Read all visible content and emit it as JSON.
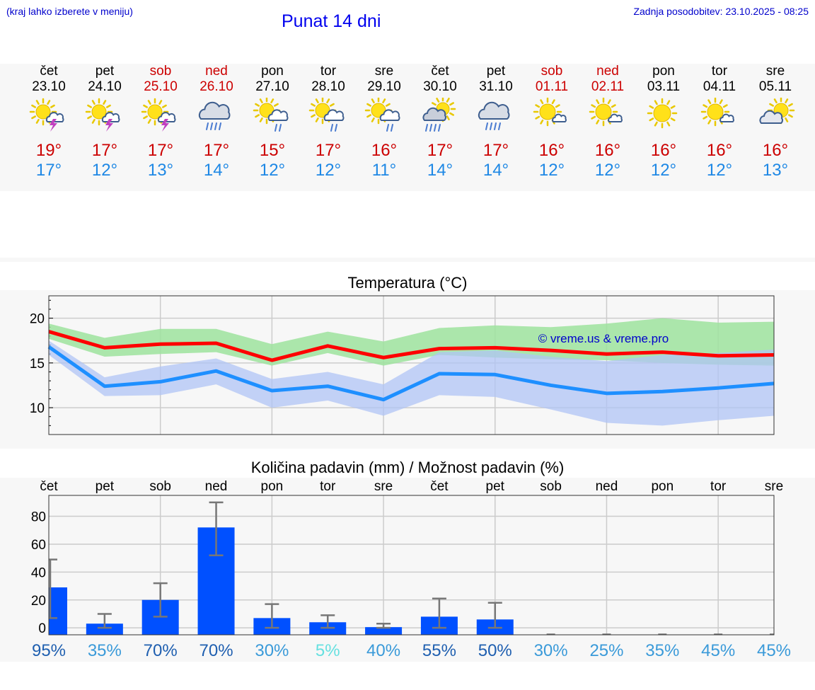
{
  "header": {
    "hint": "(kraj lahko izberete v meniju)",
    "title": "Punat 14 dni",
    "updated": "Zadnja posodobitev: 23.10.2025 - 08:25"
  },
  "days": [
    {
      "name": "čet",
      "date": "23.10",
      "weekend": false,
      "icon": "sun-cloud-thunder-icon",
      "tmax": "19°",
      "tmin": "17°"
    },
    {
      "name": "pet",
      "date": "24.10",
      "weekend": false,
      "icon": "sun-cloud-thunder-icon",
      "tmax": "17°",
      "tmin": "12°"
    },
    {
      "name": "sob",
      "date": "25.10",
      "weekend": true,
      "icon": "sun-cloud-thunder-icon",
      "tmax": "17°",
      "tmin": "13°"
    },
    {
      "name": "ned",
      "date": "26.10",
      "weekend": true,
      "icon": "cloud-heavy-rain-icon",
      "tmax": "17°",
      "tmin": "14°"
    },
    {
      "name": "pon",
      "date": "27.10",
      "weekend": false,
      "icon": "sun-cloud-rain-icon",
      "tmax": "15°",
      "tmin": "12°"
    },
    {
      "name": "tor",
      "date": "28.10",
      "weekend": false,
      "icon": "sun-cloud-rain-icon",
      "tmax": "17°",
      "tmin": "12°"
    },
    {
      "name": "sre",
      "date": "29.10",
      "weekend": false,
      "icon": "sun-cloud-rain-icon",
      "tmax": "16°",
      "tmin": "11°"
    },
    {
      "name": "čet",
      "date": "30.10",
      "weekend": false,
      "icon": "sun-dark-cloud-rain-icon",
      "tmax": "17°",
      "tmin": "14°"
    },
    {
      "name": "pet",
      "date": "31.10",
      "weekend": false,
      "icon": "cloud-heavy-rain-icon",
      "tmax": "17°",
      "tmin": "14°"
    },
    {
      "name": "sob",
      "date": "01.11",
      "weekend": true,
      "icon": "sun-small-cloud-icon",
      "tmax": "16°",
      "tmin": "12°"
    },
    {
      "name": "ned",
      "date": "02.11",
      "weekend": true,
      "icon": "sun-small-cloud-icon",
      "tmax": "16°",
      "tmin": "12°"
    },
    {
      "name": "pon",
      "date": "03.11",
      "weekend": false,
      "icon": "sun-icon",
      "tmax": "16°",
      "tmin": "12°"
    },
    {
      "name": "tor",
      "date": "04.11",
      "weekend": false,
      "icon": "sun-small-cloud-icon",
      "tmax": "16°",
      "tmin": "12°"
    },
    {
      "name": "sre",
      "date": "05.11",
      "weekend": false,
      "icon": "sun-behind-cloud-icon",
      "tmax": "16°",
      "tmin": "13°"
    }
  ],
  "chart_data": [
    {
      "type": "line",
      "title": "Temperatura (°C)",
      "watermark": "© vreme.us & vreme.pro",
      "ylim": [
        7,
        22.5
      ],
      "yticks": [
        "10",
        "15",
        "20"
      ],
      "grid": true,
      "x": [
        0,
        1,
        2,
        3,
        4,
        5,
        6,
        7,
        8,
        9,
        10,
        11,
        12,
        13
      ],
      "series": [
        {
          "role": "max",
          "color": "#ff0000",
          "values": [
            18.5,
            16.7,
            17.1,
            17.2,
            15.3,
            16.9,
            15.6,
            16.6,
            16.7,
            16.4,
            16.0,
            16.2,
            15.8,
            15.9
          ],
          "band_low": [
            17.7,
            15.7,
            16.0,
            16.2,
            14.7,
            16.1,
            14.7,
            15.9,
            15.6,
            15.4,
            15.3,
            15.0,
            14.8,
            14.7
          ],
          "band_high": [
            19.4,
            17.8,
            18.8,
            18.8,
            17.1,
            18.5,
            17.4,
            18.9,
            19.2,
            19.0,
            19.4,
            20.0,
            19.5,
            19.6
          ],
          "band_color": "#9ee39e"
        },
        {
          "role": "min",
          "color": "#1e8fff",
          "values": [
            16.8,
            12.4,
            12.9,
            14.1,
            11.9,
            12.4,
            10.9,
            13.8,
            13.7,
            12.5,
            11.6,
            11.8,
            12.2,
            12.7
          ],
          "band_low": [
            15.9,
            11.3,
            11.4,
            12.6,
            10.0,
            10.8,
            9.1,
            11.4,
            11.2,
            9.8,
            8.3,
            8.0,
            8.6,
            9.1
          ],
          "band_high": [
            17.5,
            13.4,
            14.6,
            15.5,
            13.2,
            14.0,
            12.6,
            16.2,
            16.4,
            15.7,
            15.2,
            15.9,
            16.1,
            16.5
          ],
          "band_color": "#b0c4f6"
        }
      ]
    },
    {
      "type": "bar",
      "title": "Količina padavin (mm) / Možnost padavin (%)",
      "categories": [
        "čet",
        "pet",
        "sob",
        "ned",
        "pon",
        "tor",
        "sre",
        "čet",
        "pet",
        "sob",
        "ned",
        "pon",
        "tor",
        "sre"
      ],
      "ylim": [
        -5,
        95
      ],
      "yticks": [
        "0",
        "20",
        "40",
        "60",
        "80"
      ],
      "grid": true,
      "values": [
        29,
        3,
        20,
        72,
        7,
        4,
        0.5,
        8,
        6,
        0,
        0,
        0,
        0,
        0
      ],
      "err_low": [
        7,
        0,
        8,
        52,
        0,
        0,
        0,
        0,
        0,
        0,
        0,
        0,
        0,
        0
      ],
      "err_high": [
        49,
        10,
        32,
        90,
        17,
        9,
        3,
        21,
        18,
        0,
        0,
        0,
        0,
        0
      ],
      "bar_color": "#0050ff",
      "probability": [
        "95%",
        "35%",
        "70%",
        "70%",
        "30%",
        "5%",
        "40%",
        "55%",
        "50%",
        "30%",
        "25%",
        "35%",
        "45%",
        "45%"
      ],
      "probability_colors": [
        "#1f5fb0",
        "#3a9ad9",
        "#1f5fb0",
        "#1f5fb0",
        "#3a9ad9",
        "#66e0e0",
        "#3a9ad9",
        "#1f5fb0",
        "#1f5fb0",
        "#3a9ad9",
        "#3a9ad9",
        "#3a9ad9",
        "#3a9ad9",
        "#3a9ad9"
      ]
    }
  ]
}
